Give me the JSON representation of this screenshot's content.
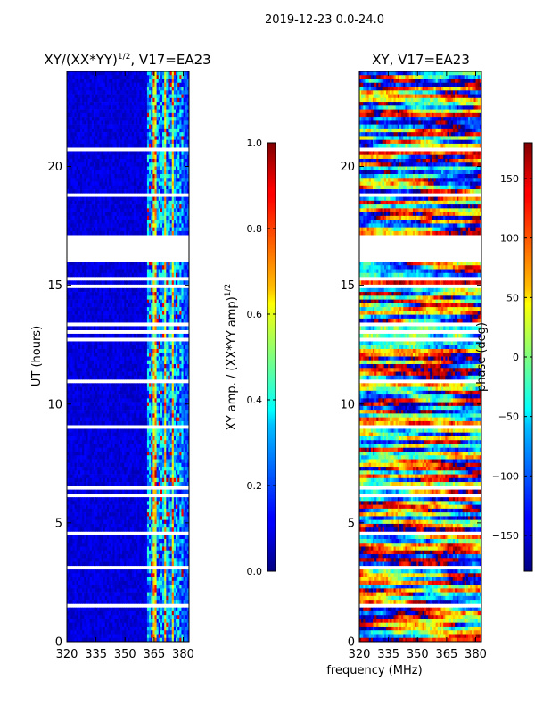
{
  "figure": {
    "suptitle": "2019-12-23 0.0-24.0"
  },
  "chart_data": [
    {
      "type": "heatmap",
      "title_base": "XY/(XX*YY)",
      "title_sup": "1/2",
      "title_suffix": ", V17=EA23",
      "xlabel": "",
      "ylabel": "UT (hours)",
      "xlim": [
        320,
        383
      ],
      "ylim": [
        0,
        24
      ],
      "xticks": [
        320,
        335,
        350,
        365,
        380
      ],
      "yticks": [
        0,
        5,
        10,
        15,
        20
      ],
      "colormap": "jet",
      "colorbar": {
        "label_base": "XY amp. / (XX*YY amp)",
        "label_sup": "1/2",
        "range": [
          0.0,
          1.0
        ],
        "ticks": [
          "0.0",
          "0.2",
          "0.4",
          "0.6",
          "0.8",
          "1.0"
        ],
        "tick_values": [
          0.0,
          0.2,
          0.4,
          0.6,
          0.8,
          1.0
        ]
      },
      "data_gaps_hours": [
        [
          17.05,
          17.55
        ],
        [
          16.0,
          17.05
        ]
      ]
    },
    {
      "type": "heatmap",
      "title": "XY, V17=EA23",
      "xlabel": "frequency (MHz)",
      "ylabel": "",
      "xlim": [
        320,
        383
      ],
      "ylim": [
        0,
        24
      ],
      "xticks": [
        320,
        335,
        350,
        365,
        380
      ],
      "yticks": [
        0,
        5,
        10,
        15,
        20
      ],
      "colormap": "jet",
      "colorbar": {
        "label": "phase (deg)",
        "range": [
          -180,
          180
        ],
        "ticks": [
          "−150",
          "−100",
          "−50",
          "0",
          "50",
          "100",
          "150"
        ],
        "tick_values": [
          -150,
          -100,
          -50,
          0,
          50,
          100,
          150
        ]
      },
      "data_gaps_hours": [
        [
          16.0,
          17.05
        ]
      ]
    }
  ]
}
